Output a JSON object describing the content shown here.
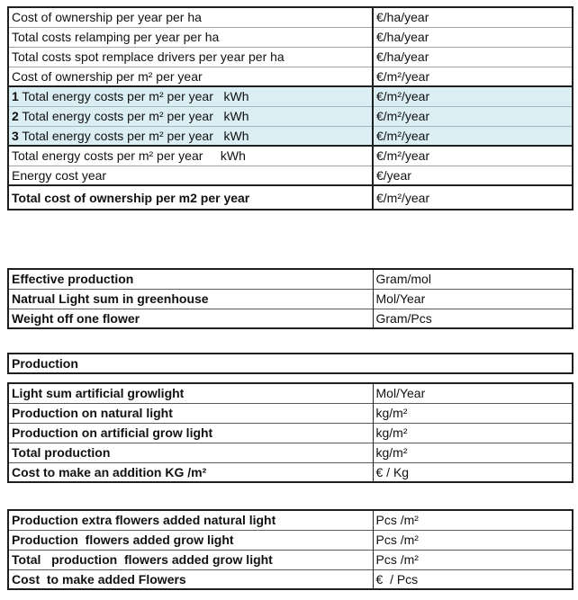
{
  "colors": {
    "highlight": "#daeef3",
    "grid_dark": "#1f1f1f",
    "grid_light": "#a3a3a3"
  },
  "cost_table": {
    "rows": [
      {
        "label": "Cost of ownership per year per ha",
        "unit": "€/ha/year"
      },
      {
        "label": "Total costs relamping per year per ha",
        "unit": "€/ha/year"
      },
      {
        "label": "Total costs spot remplace drivers per year per ha",
        "unit": "€/ha/year"
      },
      {
        "label": "Cost of ownership per m² per year",
        "unit": "€/m²/year"
      },
      {
        "num": "1",
        "label": " Total energy costs per m² per year   kWh",
        "unit": "€/m²/year"
      },
      {
        "num": "2",
        "label": " Total energy costs per m² per year   kWh",
        "unit": "€/m²/year"
      },
      {
        "num": "3",
        "label": " Total energy costs per m² per year   kWh",
        "unit": "€/m²/year"
      },
      {
        "label": "Total energy costs per m² per year     kWh",
        "unit": "€/m²/year"
      },
      {
        "label": "Energy cost year",
        "unit": "€/year"
      },
      {
        "label": "Total cost of ownership per m2 per year",
        "unit": "€/m²/year"
      }
    ]
  },
  "production_inputs_table": {
    "rows": [
      {
        "label": "Effective production",
        "unit": "Gram/mol"
      },
      {
        "label": "Natrual Light sum in greenhouse",
        "unit": "Mol/Year"
      },
      {
        "label": "Weight off one flower",
        "unit": "Gram/Pcs"
      }
    ]
  },
  "section_header": {
    "title": "Production"
  },
  "production_table": {
    "rows": [
      {
        "label": "Light sum artificial growlight",
        "unit": "Mol/Year"
      },
      {
        "label": "Production on natural light",
        "unit": "kg/m²"
      },
      {
        "label": "Production on artificial grow light",
        "unit": "kg/m²"
      },
      {
        "label": "Total production",
        "unit": "kg/m²"
      },
      {
        "label": "Cost to make an addition KG /m²",
        "unit": "€ / Kg"
      }
    ]
  },
  "flowers_table": {
    "rows": [
      {
        "label": "Production extra flowers added natural light",
        "unit": "Pcs /m²"
      },
      {
        "label": "Production  flowers added grow light",
        "unit": "Pcs /m²"
      },
      {
        "label": "Total   production  flowers added grow light",
        "unit": "Pcs /m²"
      },
      {
        "label": "Cost  to make added Flowers",
        "unit": "€  / Pcs"
      }
    ]
  }
}
